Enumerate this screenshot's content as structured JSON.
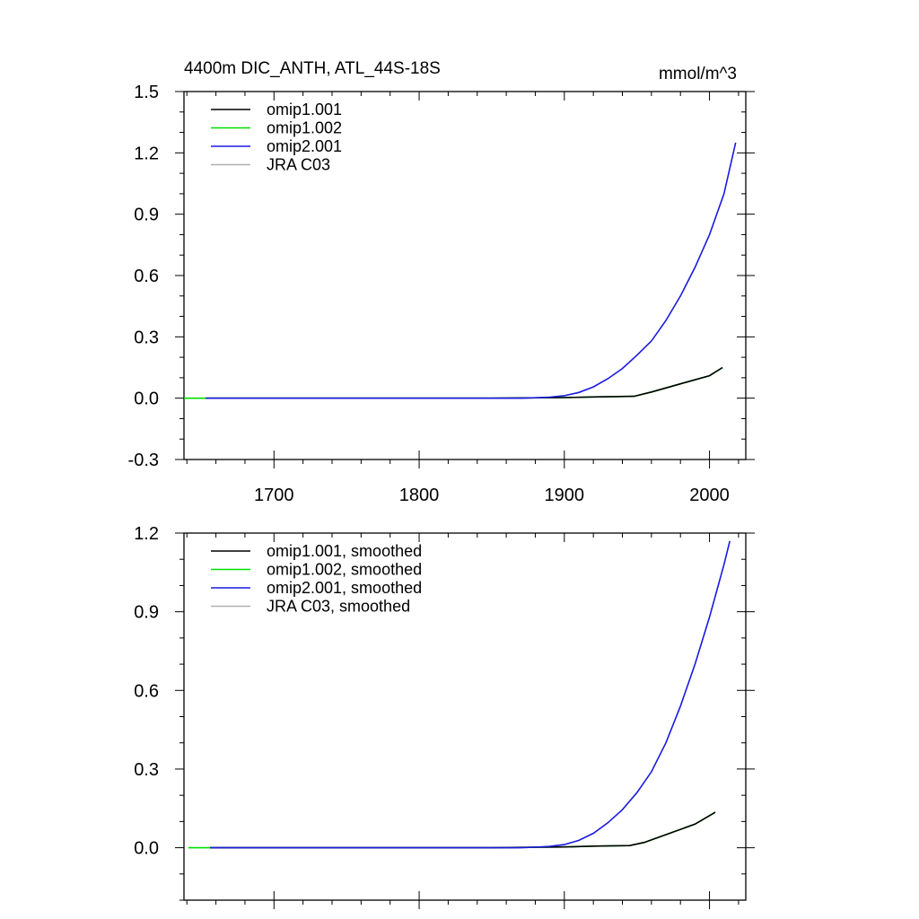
{
  "chart_data": [
    {
      "type": "line",
      "title": "4400m DIC_ANTH, ATL_44S-18S",
      "units": "mmol/m^3",
      "xlim": [
        1638,
        2025
      ],
      "ylim": [
        -0.3,
        1.5
      ],
      "xticks": [
        1700,
        1800,
        1900,
        2000
      ],
      "xtick_labels": [
        "1700",
        "1800",
        "1900",
        "2000"
      ],
      "yticks": [
        -0.3,
        0.0,
        0.3,
        0.6,
        0.9,
        1.2,
        1.5
      ],
      "ytick_labels": [
        "-0.3",
        "0.0",
        "0.3",
        "0.6",
        "0.9",
        "1.2",
        "1.5"
      ],
      "grid": false,
      "legend_position": "top-left",
      "series": [
        {
          "name": "omip1.001",
          "color": "#000000",
          "x": [
            1653,
            1700,
            1800,
            1850,
            1900,
            1920,
            1948,
            1960,
            1980,
            2000,
            2009
          ],
          "y": [
            0.0,
            0.0,
            0.0,
            0.0,
            0.003,
            0.006,
            0.009,
            0.03,
            0.07,
            0.11,
            0.15
          ]
        },
        {
          "name": "omip1.002",
          "color": "#00e000",
          "x": [
            1638,
            1700,
            1800,
            1850,
            1900,
            1920,
            1948,
            1960,
            1980,
            2000,
            2009
          ],
          "y": [
            0.0,
            0.0,
            0.0,
            0.0,
            0.003,
            0.006,
            0.009,
            0.03,
            0.07,
            0.11,
            0.15
          ]
        },
        {
          "name": "omip2.001",
          "color": "#1a1ae0",
          "x": [
            1653,
            1700,
            1800,
            1870,
            1880,
            1890,
            1900,
            1910,
            1920,
            1930,
            1940,
            1950,
            1960,
            1970,
            1980,
            1990,
            2000,
            2010,
            2018
          ],
          "y": [
            0.0,
            0.0,
            0.0,
            0.0,
            0.002,
            0.005,
            0.012,
            0.028,
            0.055,
            0.095,
            0.145,
            0.21,
            0.28,
            0.38,
            0.5,
            0.64,
            0.8,
            1.0,
            1.25
          ]
        },
        {
          "name": "JRA C03",
          "color": "#b0b0b0",
          "x": [],
          "y": []
        }
      ]
    },
    {
      "type": "line",
      "title": "",
      "xlim": [
        1638,
        2025
      ],
      "ylim": [
        -0.2,
        1.2
      ],
      "xticks": [
        1700,
        1800,
        1900,
        2000
      ],
      "yticks": [
        0.0,
        0.3,
        0.6,
        0.9,
        1.2
      ],
      "ytick_labels": [
        "0.0",
        "0.3",
        "0.6",
        "0.9",
        "1.2"
      ],
      "grid": false,
      "legend_position": "top-left",
      "series": [
        {
          "name": "omip1.001, smoothed",
          "color": "#000000",
          "x": [
            1656,
            1700,
            1800,
            1850,
            1900,
            1920,
            1945,
            1955,
            1970,
            1990,
            2004
          ],
          "y": [
            0.0,
            0.0,
            0.0,
            0.0,
            0.003,
            0.006,
            0.008,
            0.02,
            0.05,
            0.09,
            0.135
          ]
        },
        {
          "name": "omip1.002, smoothed",
          "color": "#00e000",
          "x": [
            1641,
            1700,
            1800,
            1850,
            1900,
            1920,
            1945,
            1955,
            1970,
            1990,
            2004
          ],
          "y": [
            0.0,
            0.0,
            0.0,
            0.0,
            0.003,
            0.006,
            0.008,
            0.02,
            0.05,
            0.09,
            0.135
          ]
        },
        {
          "name": "omip2.001, smoothed",
          "color": "#1a1ae0",
          "x": [
            1656,
            1700,
            1800,
            1870,
            1880,
            1890,
            1900,
            1910,
            1920,
            1930,
            1940,
            1950,
            1960,
            1970,
            1980,
            1990,
            2000,
            2010,
            2014
          ],
          "y": [
            0.0,
            0.0,
            0.0,
            0.0,
            0.002,
            0.005,
            0.012,
            0.028,
            0.055,
            0.095,
            0.145,
            0.21,
            0.29,
            0.4,
            0.54,
            0.7,
            0.88,
            1.08,
            1.17
          ]
        },
        {
          "name": "JRA C03, smoothed",
          "color": "#b0b0b0",
          "x": [],
          "y": []
        }
      ]
    }
  ]
}
